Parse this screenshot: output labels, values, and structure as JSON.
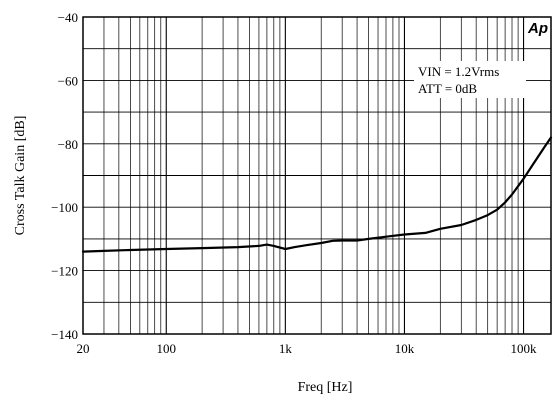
{
  "chart_data": {
    "type": "line",
    "title": "",
    "xlabel": "Freq [Hz]",
    "ylabel": "Cross Talk Gain [dB]",
    "x_scale": "log",
    "xlim": [
      20,
      170000
    ],
    "ylim": [
      -140,
      -40
    ],
    "grid": true,
    "x_ticks": [
      {
        "value": 20,
        "label": "20"
      },
      {
        "value": 100,
        "label": "100"
      },
      {
        "value": 1000,
        "label": "1k"
      },
      {
        "value": 10000,
        "label": "10k"
      },
      {
        "value": 100000,
        "label": "100k"
      }
    ],
    "y_ticks": [
      {
        "value": -40,
        "label": "−40"
      },
      {
        "value": -60,
        "label": "−60"
      },
      {
        "value": -80,
        "label": "−80"
      },
      {
        "value": -100,
        "label": "−100"
      },
      {
        "value": -120,
        "label": "−120"
      },
      {
        "value": -140,
        "label": "−140"
      }
    ],
    "annotations": [
      "VIN = 1.2Vrms",
      "ATT = 0dB"
    ],
    "logo": "Ap",
    "series": [
      {
        "color": "#000000",
        "x": [
          20,
          30,
          50,
          100,
          200,
          400,
          600,
          700,
          800,
          1000,
          1200,
          1500,
          2000,
          2500,
          3000,
          4000,
          5000,
          7000,
          10000,
          15000,
          20000,
          30000,
          40000,
          50000,
          60000,
          70000,
          80000,
          100000,
          120000,
          150000,
          170000
        ],
        "y": [
          -114,
          -113.8,
          -113.5,
          -113.2,
          -112.9,
          -112.6,
          -112.2,
          -111.8,
          -112.2,
          -113.2,
          -112.6,
          -112,
          -111.3,
          -110.6,
          -110.5,
          -110.5,
          -110,
          -109.3,
          -108.6,
          -108.1,
          -106.8,
          -105.6,
          -104,
          -102.5,
          -100.8,
          -98.5,
          -96,
          -91,
          -86.5,
          -81,
          -78
        ]
      }
    ]
  }
}
